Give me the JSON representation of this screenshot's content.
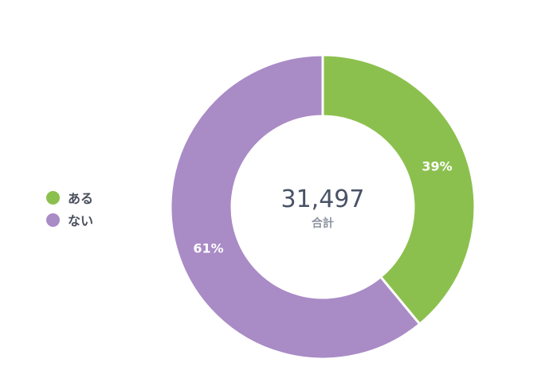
{
  "chart_data": {
    "type": "pie",
    "variant": "donut",
    "categories": [
      "ある",
      "ない"
    ],
    "values": [
      39,
      61
    ],
    "value_labels": [
      "39%",
      "61%"
    ],
    "colors": [
      "#8cc04e",
      "#a98bc6"
    ],
    "center_value": "31,497",
    "center_label": "合計",
    "legend_position": "left"
  }
}
